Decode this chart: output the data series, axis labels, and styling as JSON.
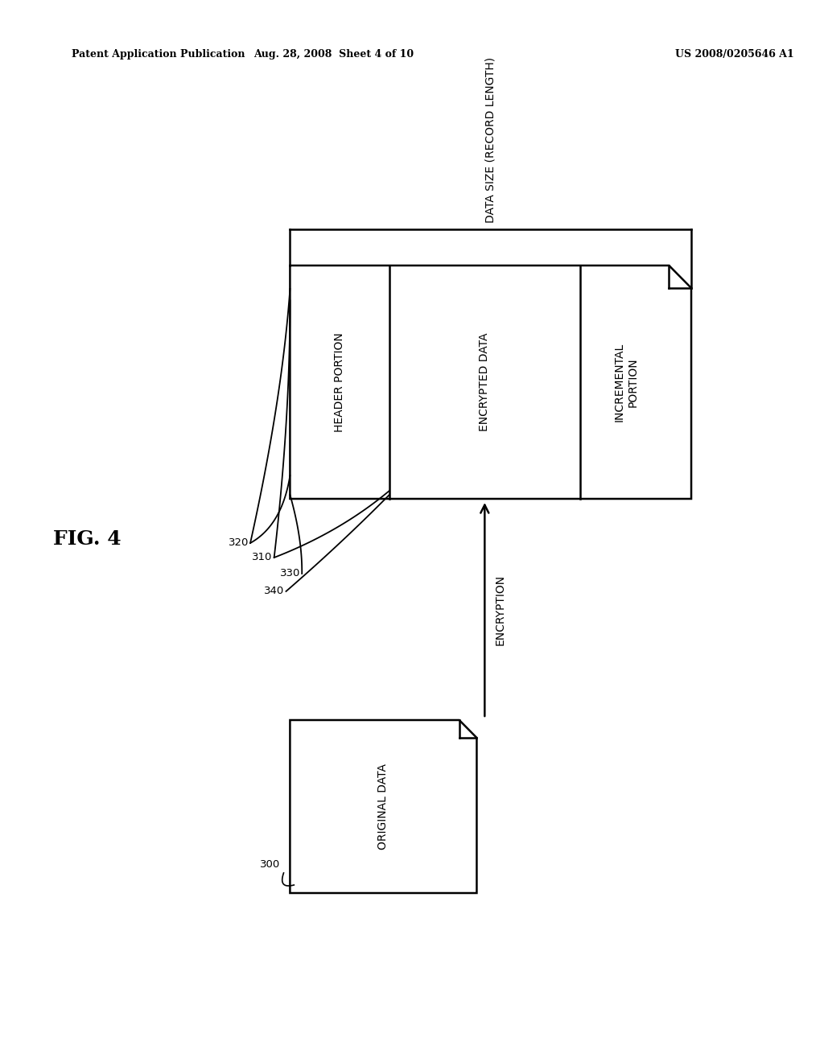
{
  "bg_color": "#ffffff",
  "header_text_left": "Patent Application Publication",
  "header_text_mid": "Aug. 28, 2008  Sheet 4 of 10",
  "header_text_right": "US 2008/0205646 A1",
  "fig_label": "FIG. 4",
  "font_size_box": 10,
  "font_size_header": 9,
  "font_size_ref": 9.5,
  "font_size_figlabel": 18
}
